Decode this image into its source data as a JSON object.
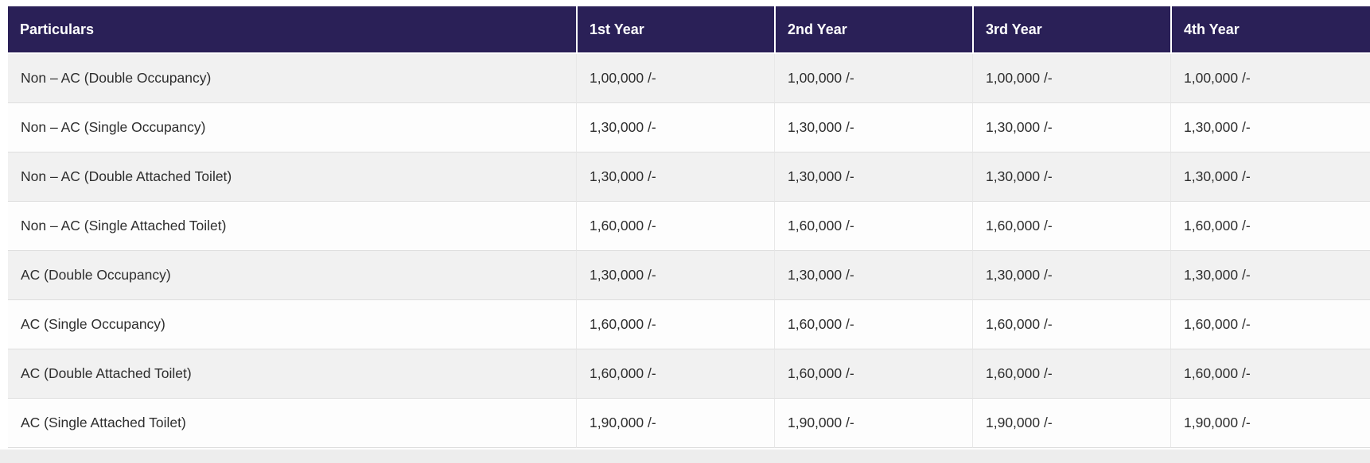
{
  "table": {
    "columns": [
      "Particulars",
      "1st Year",
      "2nd Year",
      "3rd Year",
      "4th Year"
    ],
    "rows": [
      {
        "particulars": "Non – AC (Double Occupancy)",
        "values": [
          "1,00,000 /-",
          "1,00,000 /-",
          "1,00,000 /-",
          "1,00,000 /-"
        ]
      },
      {
        "particulars": "Non – AC (Single Occupancy)",
        "values": [
          "1,30,000 /-",
          "1,30,000 /-",
          "1,30,000 /-",
          "1,30,000 /-"
        ]
      },
      {
        "particulars": "Non – AC (Double Attached Toilet)",
        "values": [
          "1,30,000 /-",
          "1,30,000 /-",
          "1,30,000 /-",
          "1,30,000 /-"
        ]
      },
      {
        "particulars": "Non – AC (Single Attached Toilet)",
        "values": [
          "1,60,000 /-",
          "1,60,000 /-",
          "1,60,000 /-",
          "1,60,000 /-"
        ]
      },
      {
        "particulars": "AC (Double Occupancy)",
        "values": [
          "1,30,000 /-",
          "1,30,000 /-",
          "1,30,000 /-",
          "1,30,000 /-"
        ]
      },
      {
        "particulars": "AC (Single Occupancy)",
        "values": [
          "1,60,000 /-",
          "1,60,000 /-",
          "1,60,000 /-",
          "1,60,000 /-"
        ]
      },
      {
        "particulars": "AC (Double Attached Toilet)",
        "values": [
          "1,60,000 /-",
          "1,60,000 /-",
          "1,60,000 /-",
          "1,60,000 /-"
        ]
      },
      {
        "particulars": "AC (Single Attached Toilet)",
        "values": [
          "1,90,000 /-",
          "1,90,000 /-",
          "1,90,000 /-",
          "1,90,000 /-"
        ]
      }
    ]
  },
  "colors": {
    "header_bg": "#2a2057",
    "header_text": "#ffffff",
    "row_odd_bg": "#f1f1f1",
    "row_even_bg": "#fdfdfd",
    "border_color": "#dedede",
    "border_color_v": "#e8e8e8",
    "body_text": "#2e2e2e",
    "page_bg": "#ffffff",
    "footer_strip_bg": "#ededed"
  }
}
